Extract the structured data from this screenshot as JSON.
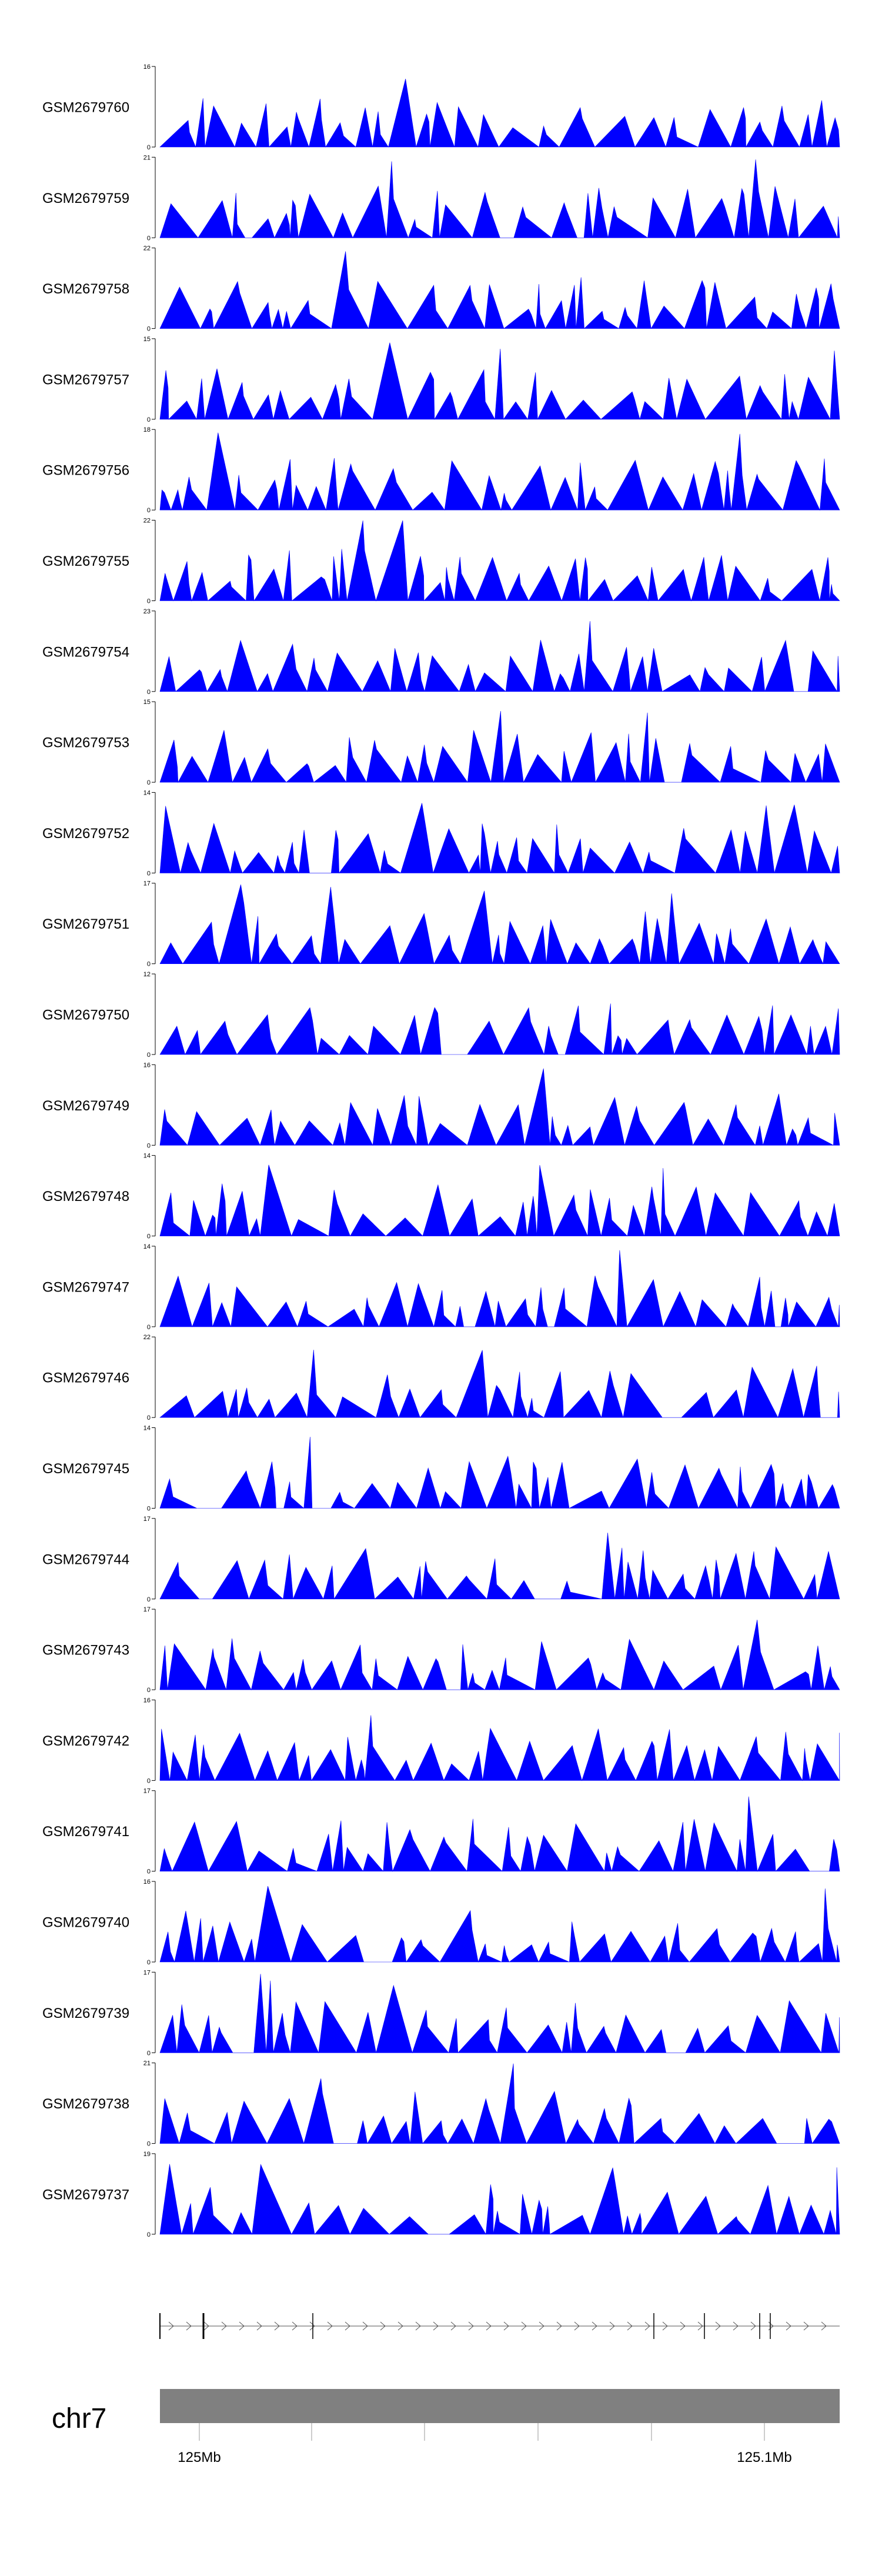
{
  "chart_data": {
    "type": "area",
    "chromosome": "chr7",
    "fill_color": "#0000ff",
    "ideogram_color": "#808080",
    "genome_ticks": [
      "125Mb",
      "125.1Mb"
    ],
    "tracks": [
      {
        "name": "GSM2679760",
        "ymax": 16,
        "ymin": 0
      },
      {
        "name": "GSM2679759",
        "ymax": 21,
        "ymin": 0
      },
      {
        "name": "GSM2679758",
        "ymax": 22,
        "ymin": 0
      },
      {
        "name": "GSM2679757",
        "ymax": 15,
        "ymin": 0
      },
      {
        "name": "GSM2679756",
        "ymax": 18,
        "ymin": 0
      },
      {
        "name": "GSM2679755",
        "ymax": 22,
        "ymin": 0
      },
      {
        "name": "GSM2679754",
        "ymax": 23,
        "ymin": 0
      },
      {
        "name": "GSM2679753",
        "ymax": 15,
        "ymin": 0
      },
      {
        "name": "GSM2679752",
        "ymax": 14,
        "ymin": 0
      },
      {
        "name": "GSM2679751",
        "ymax": 17,
        "ymin": 0
      },
      {
        "name": "GSM2679750",
        "ymax": 12,
        "ymin": 0
      },
      {
        "name": "GSM2679749",
        "ymax": 16,
        "ymin": 0
      },
      {
        "name": "GSM2679748",
        "ymax": 14,
        "ymin": 0
      },
      {
        "name": "GSM2679747",
        "ymax": 14,
        "ymin": 0
      },
      {
        "name": "GSM2679746",
        "ymax": 22,
        "ymin": 0
      },
      {
        "name": "GSM2679745",
        "ymax": 14,
        "ymin": 0
      },
      {
        "name": "GSM2679744",
        "ymax": 17,
        "ymin": 0
      },
      {
        "name": "GSM2679743",
        "ymax": 17,
        "ymin": 0
      },
      {
        "name": "GSM2679742",
        "ymax": 16,
        "ymin": 0
      },
      {
        "name": "GSM2679741",
        "ymax": 17,
        "ymin": 0
      },
      {
        "name": "GSM2679740",
        "ymax": 16,
        "ymin": 0
      },
      {
        "name": "GSM2679739",
        "ymax": 17,
        "ymin": 0
      },
      {
        "name": "GSM2679738",
        "ymax": 21,
        "ymin": 0
      },
      {
        "name": "GSM2679737",
        "ymax": 19,
        "ymin": 0
      }
    ]
  }
}
